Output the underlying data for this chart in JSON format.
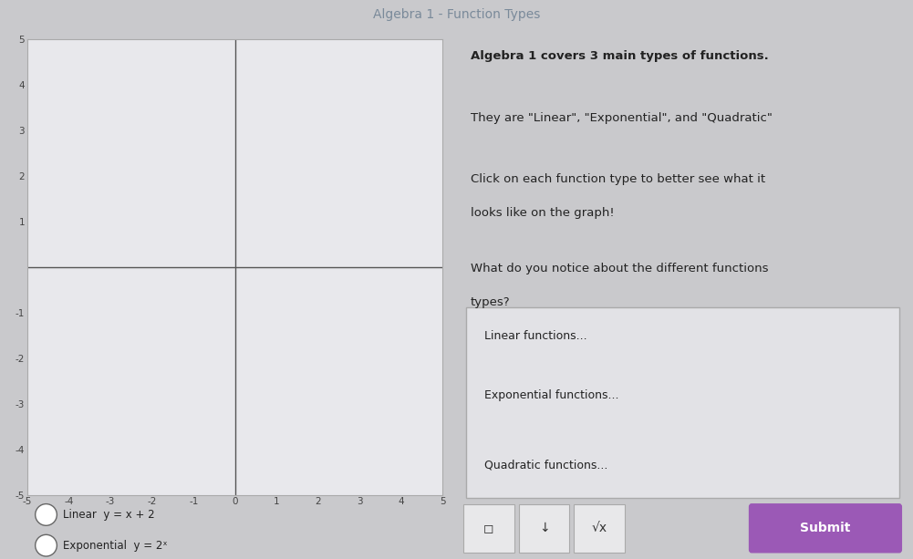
{
  "title": "Algebra 1 - Function Types",
  "title_color": "#7a8a9a",
  "title_fontsize": 10,
  "bg_color": "#c9c9cc",
  "graph_bg": "#e8e8ec",
  "graph_xlim": [
    -5,
    5
  ],
  "graph_ylim": [
    -5,
    5
  ],
  "right_panel_bg": "#d0d0d5",
  "right_title": "Algebra 1 covers 3 main types of functions.",
  "right_line2": "They are \"Linear\", \"Exponential\", and \"Quadratic\"",
  "right_line3a": "Click on each function type to better see what it",
  "right_line3b": "looks like on the graph!",
  "right_line4a": "What do you notice about the different functions",
  "right_line4b": "types?",
  "answer_box_bg": "#e2e2e6",
  "answer_box_border": "#aaaaaa",
  "answer_line1": "Linear functions...",
  "answer_line2": "Exponential functions...",
  "answer_line3": "Quadratic functions...",
  "submit_btn_color": "#9b59b6",
  "submit_btn_text": "Submit",
  "radio1_text": "Linear  y = x + 2",
  "radio2_text": "Exponential  y = 2ˣ",
  "bottom_bg": "#c0c0c5",
  "graph_tick_fontsize": 7.5,
  "text_color": "#222222",
  "text_fontsize": 9.5,
  "axis_color": "#555555",
  "icon_bg": "#e8e8ea",
  "icon_border": "#aaaaaa",
  "toolbar_bg": "#d0d0d5"
}
